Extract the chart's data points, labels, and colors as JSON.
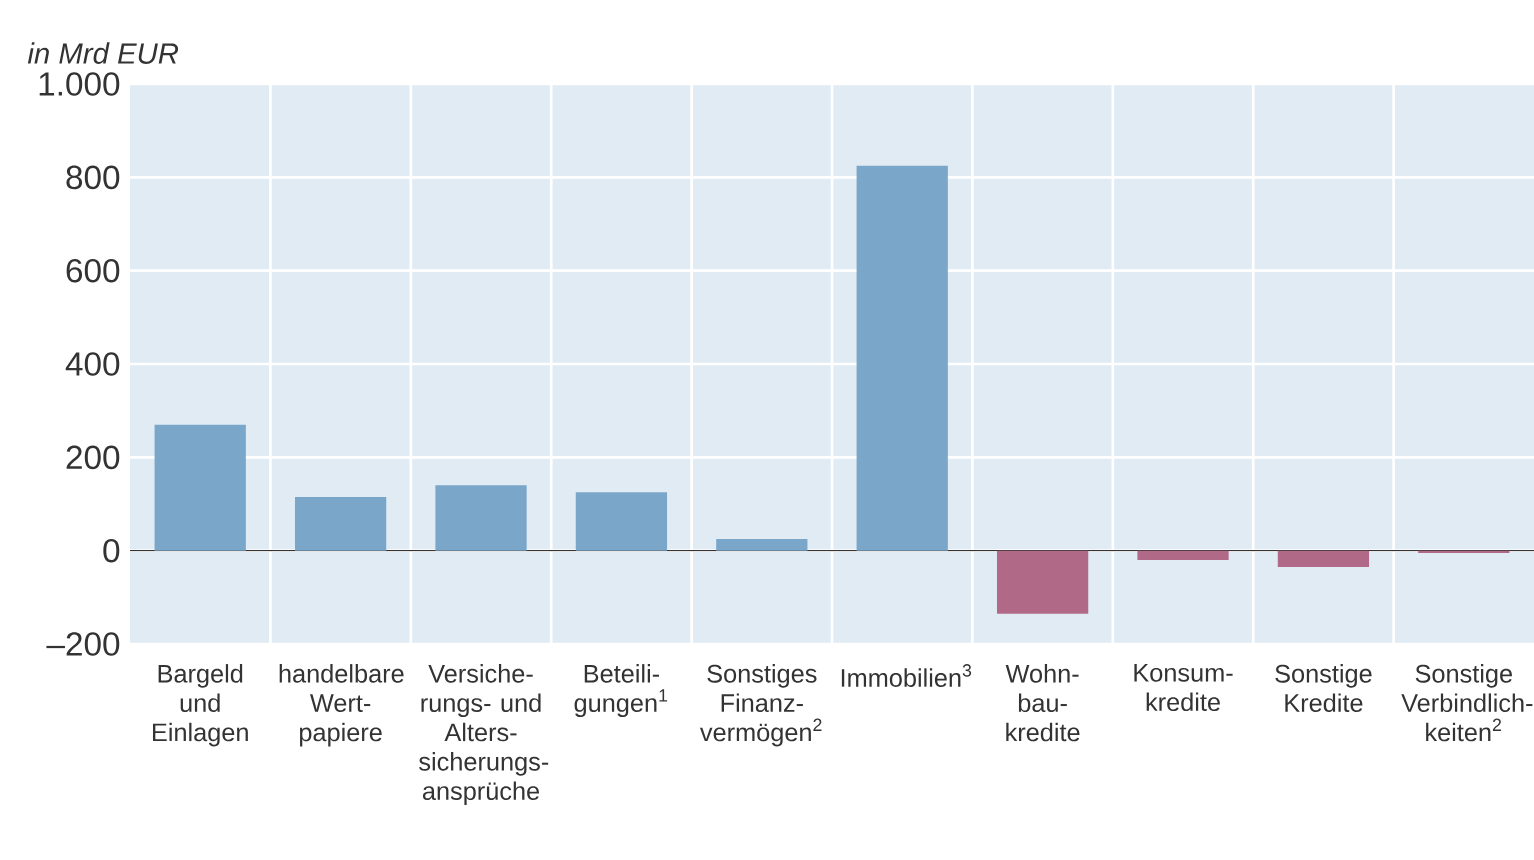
{
  "chart_data": {
    "type": "bar",
    "ylabel": "in Mrd EUR",
    "categories": [
      "Bargeld und Einlagen",
      "handelbare Wert- papiere",
      "Versiche- rungs- und Alters- sicherungs- ansprüche",
      "Beteili- gungen$^{1}$",
      "Sonstiges Finanz- vermögen$^{2}$",
      "Immobilien$^{3}$",
      "Wohn- bau- kredite",
      "Konsum- kredite",
      "Sonstige Kredite",
      "Sonstige Verbindlich- keiten$^{2}$"
    ],
    "values": [
      270,
      115,
      140,
      125,
      25,
      825,
      -135,
      -20,
      -35,
      -5
    ],
    "colors": [
      "#7aa6c9",
      "#7aa6c9",
      "#7aa6c9",
      "#7aa6c9",
      "#7aa6c9",
      "#7aa6c9",
      "#b06a87",
      "#b06a87",
      "#b06a87",
      "#b06a87"
    ],
    "ylim": [
      -200,
      1000
    ],
    "yticks": [
      {
        "value": -200,
        "label": "–200"
      },
      0,
      200,
      400,
      600,
      800,
      {
        "value": 1000,
        "label": "1.000"
      }
    ],
    "grid": true
  }
}
